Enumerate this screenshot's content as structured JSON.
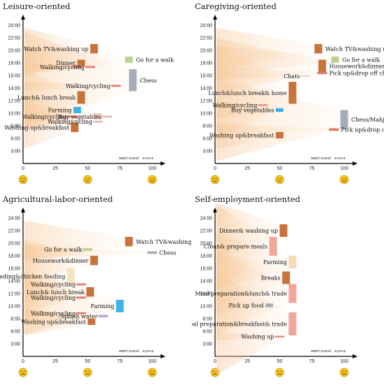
{
  "chart_data": [
    {
      "type": "range-bar",
      "title": "Leisure-oriented",
      "xlabel": "emotional score",
      "ylim": [
        0,
        24
      ],
      "xlim": [
        0,
        100
      ],
      "yticks": [
        "3:00",
        "6:00",
        "8:00",
        "10:00",
        "12:00",
        "14:00",
        "16:00",
        "18:00",
        "20:00",
        "22:00",
        "24:00"
      ],
      "xticks": [
        0,
        25,
        50,
        75,
        100
      ],
      "faces": [
        "sad",
        "neutral",
        "happy"
      ],
      "activities": [
        {
          "label": "Watch TV&washing up",
          "x": 55,
          "y0": 19.5,
          "y1": 21.0,
          "color": "#c8733a"
        },
        {
          "label": "Go for a walk",
          "x": 82,
          "y0": 18.0,
          "y1": 19.0,
          "color": "#bccf94"
        },
        {
          "label": "Dinner",
          "x": 45,
          "y0": 17.5,
          "y1": 18.5,
          "color": "#c8733a"
        },
        {
          "label": "",
          "x": 42,
          "y0": 17.2,
          "y1": 17.6,
          "color": "#e07a6a"
        },
        {
          "label": "Walking/cycling",
          "x": 52,
          "y0": 17.2,
          "y1": 17.5,
          "color": "#e07a6a"
        },
        {
          "label": "Chess",
          "x": 85,
          "y0": 13.5,
          "y1": 17.0,
          "color": "#a7adb8"
        },
        {
          "label": "Walking/cycling",
          "x": 72,
          "y0": 14.2,
          "y1": 14.5,
          "color": "#e07a6a"
        },
        {
          "label": "Lunch& lunch break",
          "x": 45,
          "y0": 11.5,
          "y1": 13.5,
          "color": "#c8733a"
        },
        {
          "label": "Farming",
          "x": 42,
          "y0": 10.0,
          "y1": 11.0,
          "color": "#3db3e8"
        },
        {
          "label": "Walking/cycling",
          "x": 38,
          "y0": 9.3,
          "y1": 9.6,
          "color": "#e07a6a"
        },
        {
          "label": "Buy vegetables",
          "x": 65,
          "y0": 9.3,
          "y1": 9.6,
          "color": "#e6b8b0"
        },
        {
          "label": "",
          "x": 58,
          "y0": 9.0,
          "y1": 10.0,
          "color": "#e9d1b8"
        },
        {
          "label": "Walking/cycling",
          "x": 58,
          "y0": 8.5,
          "y1": 8.8,
          "color": "#e6b8b0"
        },
        {
          "label": "Washing up&breakfast",
          "x": 40,
          "y0": 7.0,
          "y1": 8.5,
          "color": "#c8733a"
        }
      ]
    },
    {
      "type": "range-bar",
      "title": "Caregiving-oriented",
      "xlabel": "emotional score",
      "ylim": [
        0,
        24
      ],
      "xlim": [
        0,
        100
      ],
      "yticks": [
        "3:00",
        "6:00",
        "8:00",
        "10:00",
        "12:00",
        "14:00",
        "16:00",
        "18:00",
        "20:00",
        "22:00",
        "24:00"
      ],
      "xticks": [
        0,
        25,
        50,
        75,
        100
      ],
      "faces": [
        "sad",
        "neutral",
        "happy"
      ],
      "activities": [
        {
          "label": "Watch TV&washing up",
          "x": 80,
          "y0": 19.5,
          "y1": 21.0,
          "color": "#c8733a"
        },
        {
          "label": "Go for a walk",
          "x": 93,
          "y0": 18.0,
          "y1": 19.0,
          "color": "#bccf94"
        },
        {
          "label": "Housework&dinner",
          "x": 83,
          "y0": 16.5,
          "y1": 18.5,
          "color": "#c8733a"
        },
        {
          "label": "Pick up&drop off children",
          "x": 83,
          "y0": 16.2,
          "y1": 16.6,
          "color": "#e07a6a"
        },
        {
          "label": "Chats",
          "x": 70,
          "y0": 15.8,
          "y1": 16.0,
          "color": "#e9d1b8"
        },
        {
          "label": "Lunch&lunch break& home",
          "x": 60,
          "y0": 11.5,
          "y1": 15.0,
          "color": "#c8733a"
        },
        {
          "label": "Walking/cycling",
          "x": 37,
          "y0": 11.2,
          "y1": 11.4,
          "color": "#e07a6a"
        },
        {
          "label": "Buy vegetables",
          "x": 50,
          "y0": 10.2,
          "y1": 10.8,
          "color": "#3db3e8"
        },
        {
          "label": "Chess/Mahjong",
          "x": 100,
          "y0": 7.5,
          "y1": 10.5,
          "color": "#a7adb8"
        },
        {
          "label": "Pick up&drop off children",
          "x": 92,
          "y0": 7.2,
          "y1": 7.6,
          "color": "#e07a6a"
        },
        {
          "label": "Washing up&breakfast",
          "x": 50,
          "y0": 6.0,
          "y1": 7.0,
          "color": "#c8733a"
        }
      ]
    },
    {
      "type": "range-bar",
      "title": "Agricultural-labor-oriented",
      "xlabel": "emotional score",
      "ylim": [
        0,
        24
      ],
      "xlim": [
        0,
        100
      ],
      "yticks": [
        "3:00",
        "6:00",
        "8:00",
        "10:00",
        "12:00",
        "14:00",
        "16:00",
        "18:00",
        "20:00",
        "22:00",
        "24:00"
      ],
      "xticks": [
        0,
        25,
        50,
        75,
        100
      ],
      "faces": [
        "sad",
        "neutral",
        "happy"
      ],
      "activities": [
        {
          "label": "Watch TV&washing up",
          "x": 82,
          "y0": 19.5,
          "y1": 21.0,
          "color": "#c8733a"
        },
        {
          "label": "Go for a walk",
          "x": 50,
          "y0": 18.8,
          "y1": 19.2,
          "color": "#bccf94"
        },
        {
          "label": "Chess",
          "x": 100,
          "y0": 18.3,
          "y1": 18.7,
          "color": "#a7adb8"
        },
        {
          "label": "Housework&dinner",
          "x": 55,
          "y0": 16.5,
          "y1": 18.0,
          "color": "#c8733a"
        },
        {
          "label": "Weeding&chicken feeding",
          "x": 37,
          "y0": 13.5,
          "y1": 16.0,
          "color": "#f5e2c0"
        },
        {
          "label": "Walking/cycling",
          "x": 45,
          "y0": 13.3,
          "y1": 13.6,
          "color": "#e07a6a"
        },
        {
          "label": "Lunch& lunch break",
          "x": 52,
          "y0": 11.5,
          "y1": 13.0,
          "color": "#c8733a"
        },
        {
          "label": "Walking/cycling",
          "x": 45,
          "y0": 11.2,
          "y1": 11.5,
          "color": "#e07a6a"
        },
        {
          "label": "Farming",
          "x": 75,
          "y0": 9.0,
          "y1": 11.0,
          "color": "#3db3e8"
        },
        {
          "label": "Walking/cycling",
          "x": 45,
          "y0": 8.7,
          "y1": 9.0,
          "color": "#e07a6a"
        },
        {
          "label": "Splash water",
          "x": 62,
          "y0": 8.2,
          "y1": 8.6,
          "color": "#b9a6d3"
        },
        {
          "label": "Washing up&breakfast",
          "x": 53,
          "y0": 7.0,
          "y1": 8.0,
          "color": "#c8733a"
        }
      ]
    },
    {
      "type": "range-bar",
      "title": "Self-employment-oriented",
      "xlabel": "emotional score",
      "ylim": [
        0,
        24
      ],
      "xlim": [
        0,
        100
      ],
      "yticks": [
        "3:00",
        "6:00",
        "8:00",
        "10:00",
        "12:00",
        "14:00",
        "16:00",
        "18:00",
        "20:00",
        "22:00",
        "24:00"
      ],
      "xticks": [
        0,
        25,
        50,
        75,
        100
      ],
      "faces": [
        "sad",
        "neutral",
        "happy"
      ],
      "activities": [
        {
          "label": "Dinner& washing up",
          "x": 53,
          "y0": 21.0,
          "y1": 23.0,
          "color": "#c8733a"
        },
        {
          "label": "Clean& prepare meals",
          "x": 45,
          "y0": 18.0,
          "y1": 21.0,
          "color": "#efa79a"
        },
        {
          "label": "Farming",
          "x": 60,
          "y0": 16.0,
          "y1": 18.0,
          "color": "#f7dbb8"
        },
        {
          "label": "Breaks",
          "x": 55,
          "y0": 13.5,
          "y1": 15.5,
          "color": "#c8733a"
        },
        {
          "label": "Meal preparation&lunch& trade",
          "x": 60,
          "y0": 10.5,
          "y1": 13.5,
          "color": "#efa79a"
        },
        {
          "label": "Pick up food",
          "x": 42,
          "y0": 9.8,
          "y1": 10.4,
          "color": "#a7adb8"
        },
        {
          "label": "Meal preparation&breakfast& trade",
          "x": 60,
          "y0": 5.0,
          "y1": 9.0,
          "color": "#efa79a"
        },
        {
          "label": "Washing up",
          "x": 50,
          "y0": 4.6,
          "y1": 4.9,
          "color": "#e07a6a"
        }
      ]
    }
  ]
}
